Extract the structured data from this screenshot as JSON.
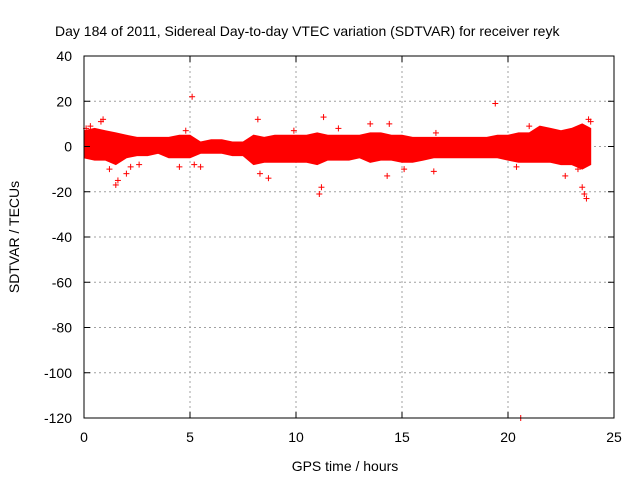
{
  "chart_data": {
    "type": "scatter",
    "title": "Day 184 of 2011, Sidereal Day-to-day VTEC variation (SDTVAR) for receiver reyk",
    "xlabel": "GPS time / hours",
    "ylabel": "SDTVAR / TECUs",
    "xlim": [
      0,
      25
    ],
    "ylim": [
      -120,
      40
    ],
    "xticks": [
      "0",
      "5",
      "10",
      "15",
      "20",
      "25"
    ],
    "yticks": [
      "40",
      "20",
      "0",
      "-20",
      "-40",
      "-60",
      "-80",
      "-100",
      "-120"
    ],
    "grid": true,
    "marker": "+",
    "color": "#ff0000",
    "band": [
      {
        "x": 0.0,
        "lo": -5,
        "hi": 7
      },
      {
        "x": 0.5,
        "lo": -6,
        "hi": 8
      },
      {
        "x": 1.0,
        "lo": -6,
        "hi": 7
      },
      {
        "x": 1.5,
        "lo": -8,
        "hi": 6
      },
      {
        "x": 2.0,
        "lo": -5,
        "hi": 5
      },
      {
        "x": 2.5,
        "lo": -4,
        "hi": 4
      },
      {
        "x": 3.0,
        "lo": -4,
        "hi": 4
      },
      {
        "x": 3.5,
        "lo": -3,
        "hi": 4
      },
      {
        "x": 4.0,
        "lo": -5,
        "hi": 4
      },
      {
        "x": 4.5,
        "lo": -5,
        "hi": 5
      },
      {
        "x": 5.0,
        "lo": -5,
        "hi": 5
      },
      {
        "x": 5.5,
        "lo": -3,
        "hi": 2
      },
      {
        "x": 6.0,
        "lo": -3,
        "hi": 3
      },
      {
        "x": 6.5,
        "lo": -3,
        "hi": 3
      },
      {
        "x": 7.0,
        "lo": -4,
        "hi": 2
      },
      {
        "x": 7.5,
        "lo": -4,
        "hi": 2
      },
      {
        "x": 8.0,
        "lo": -8,
        "hi": 5
      },
      {
        "x": 8.5,
        "lo": -7,
        "hi": 4
      },
      {
        "x": 9.0,
        "lo": -7,
        "hi": 5
      },
      {
        "x": 9.5,
        "lo": -7,
        "hi": 5
      },
      {
        "x": 10.0,
        "lo": -7,
        "hi": 5
      },
      {
        "x": 10.5,
        "lo": -7,
        "hi": 5
      },
      {
        "x": 11.0,
        "lo": -8,
        "hi": 6
      },
      {
        "x": 11.5,
        "lo": -6,
        "hi": 5
      },
      {
        "x": 12.0,
        "lo": -6,
        "hi": 5
      },
      {
        "x": 12.5,
        "lo": -6,
        "hi": 5
      },
      {
        "x": 13.0,
        "lo": -5,
        "hi": 5
      },
      {
        "x": 13.5,
        "lo": -7,
        "hi": 6
      },
      {
        "x": 14.0,
        "lo": -6,
        "hi": 6
      },
      {
        "x": 14.5,
        "lo": -6,
        "hi": 5
      },
      {
        "x": 15.0,
        "lo": -7,
        "hi": 5
      },
      {
        "x": 15.5,
        "lo": -7,
        "hi": 4
      },
      {
        "x": 16.0,
        "lo": -6,
        "hi": 4
      },
      {
        "x": 16.5,
        "lo": -5,
        "hi": 4
      },
      {
        "x": 17.0,
        "lo": -5,
        "hi": 4
      },
      {
        "x": 17.5,
        "lo": -5,
        "hi": 4
      },
      {
        "x": 18.0,
        "lo": -5,
        "hi": 4
      },
      {
        "x": 18.5,
        "lo": -5,
        "hi": 4
      },
      {
        "x": 19.0,
        "lo": -5,
        "hi": 4
      },
      {
        "x": 19.5,
        "lo": -5,
        "hi": 5
      },
      {
        "x": 20.0,
        "lo": -6,
        "hi": 5
      },
      {
        "x": 20.5,
        "lo": -7,
        "hi": 6
      },
      {
        "x": 21.0,
        "lo": -7,
        "hi": 6
      },
      {
        "x": 21.5,
        "lo": -7,
        "hi": 9
      },
      {
        "x": 22.0,
        "lo": -7,
        "hi": 8
      },
      {
        "x": 22.5,
        "lo": -8,
        "hi": 7
      },
      {
        "x": 23.0,
        "lo": -8,
        "hi": 8
      },
      {
        "x": 23.5,
        "lo": -10,
        "hi": 10
      },
      {
        "x": 23.9,
        "lo": -8,
        "hi": 8
      }
    ],
    "points": [
      {
        "x": 0.1,
        "y": 8
      },
      {
        "x": 0.3,
        "y": 9
      },
      {
        "x": 0.8,
        "y": 11
      },
      {
        "x": 0.9,
        "y": 12
      },
      {
        "x": 1.2,
        "y": -10
      },
      {
        "x": 1.5,
        "y": -17
      },
      {
        "x": 1.6,
        "y": -15
      },
      {
        "x": 2.0,
        "y": -12
      },
      {
        "x": 2.2,
        "y": -9
      },
      {
        "x": 2.6,
        "y": -8
      },
      {
        "x": 4.5,
        "y": -9
      },
      {
        "x": 4.8,
        "y": 7
      },
      {
        "x": 5.1,
        "y": 22
      },
      {
        "x": 5.2,
        "y": -8
      },
      {
        "x": 5.5,
        "y": -9
      },
      {
        "x": 8.2,
        "y": 12
      },
      {
        "x": 8.3,
        "y": -12
      },
      {
        "x": 8.7,
        "y": -14
      },
      {
        "x": 9.9,
        "y": 7
      },
      {
        "x": 11.1,
        "y": -21
      },
      {
        "x": 11.2,
        "y": -18
      },
      {
        "x": 11.3,
        "y": 13
      },
      {
        "x": 12.0,
        "y": 8
      },
      {
        "x": 13.5,
        "y": 10
      },
      {
        "x": 14.3,
        "y": -13
      },
      {
        "x": 14.4,
        "y": 10
      },
      {
        "x": 15.1,
        "y": -10
      },
      {
        "x": 16.5,
        "y": -11
      },
      {
        "x": 16.6,
        "y": 6
      },
      {
        "x": 19.4,
        "y": 19
      },
      {
        "x": 20.4,
        "y": -9
      },
      {
        "x": 20.6,
        "y": -120
      },
      {
        "x": 21.0,
        "y": 9
      },
      {
        "x": 22.7,
        "y": -13
      },
      {
        "x": 23.3,
        "y": -10
      },
      {
        "x": 23.5,
        "y": -18
      },
      {
        "x": 23.6,
        "y": -21
      },
      {
        "x": 23.7,
        "y": -23
      },
      {
        "x": 23.8,
        "y": 12
      },
      {
        "x": 23.9,
        "y": 11
      }
    ]
  }
}
